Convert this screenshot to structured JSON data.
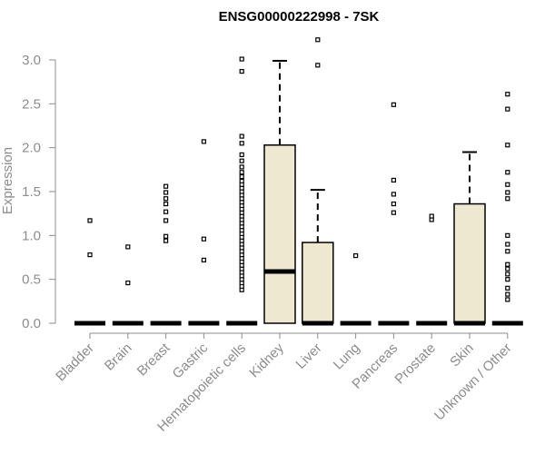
{
  "chart_data": {
    "type": "box",
    "title": "ENSG00000222998 - 7SK",
    "xlabel": "",
    "ylabel": "Expression",
    "ylim": [
      0,
      3.0
    ],
    "yticks": [
      "0.0",
      "0.5",
      "1.0",
      "1.5",
      "2.0",
      "2.5",
      "3.0"
    ],
    "categories": [
      "Bladder",
      "Brain",
      "Breast",
      "Gastric",
      "Hematopoietic cells",
      "Kidney",
      "Liver",
      "Lung",
      "Pancreas",
      "Prostate",
      "Skin",
      "Unknown / Other"
    ],
    "boxes": [
      {
        "q1": 0,
        "median": 0,
        "q3": 0,
        "whisker_low": 0,
        "whisker_high": 0,
        "outliers": [
          0.78,
          1.17
        ]
      },
      {
        "q1": 0,
        "median": 0,
        "q3": 0,
        "whisker_low": 0,
        "whisker_high": 0,
        "outliers": [
          0.46,
          0.87
        ]
      },
      {
        "q1": 0,
        "median": 0,
        "q3": 0,
        "whisker_low": 0,
        "whisker_high": 0,
        "outliers": [
          0.94,
          0.99,
          1.17,
          1.27,
          1.36,
          1.42,
          1.49,
          1.56
        ]
      },
      {
        "q1": 0,
        "median": 0,
        "q3": 0,
        "whisker_low": 0,
        "whisker_high": 0,
        "outliers": [
          0.72,
          0.96,
          2.07
        ]
      },
      {
        "q1": 0,
        "median": 0,
        "q3": 0,
        "whisker_low": 0,
        "whisker_high": 0,
        "outliers": [
          0.38,
          0.42,
          0.46,
          0.5,
          0.54,
          0.58,
          0.62,
          0.66,
          0.7,
          0.74,
          0.78,
          0.82,
          0.86,
          0.9,
          0.94,
          0.98,
          1.02,
          1.06,
          1.1,
          1.14,
          1.18,
          1.22,
          1.26,
          1.3,
          1.34,
          1.38,
          1.42,
          1.46,
          1.5,
          1.54,
          1.58,
          1.62,
          1.67,
          1.72,
          1.78,
          1.85,
          1.92,
          2.05,
          2.13,
          2.87,
          3.01
        ]
      },
      {
        "q1": 0,
        "median": 0.59,
        "q3": 2.03,
        "whisker_low": 0,
        "whisker_high": 2.99,
        "outliers": []
      },
      {
        "q1": 0,
        "median": 0,
        "q3": 0.92,
        "whisker_low": 0,
        "whisker_high": 1.52,
        "outliers": [
          2.94,
          3.23
        ]
      },
      {
        "q1": 0,
        "median": 0,
        "q3": 0,
        "whisker_low": 0,
        "whisker_high": 0,
        "outliers": [
          0.77
        ]
      },
      {
        "q1": 0,
        "median": 0,
        "q3": 0,
        "whisker_low": 0,
        "whisker_high": 0,
        "outliers": [
          1.26,
          1.36,
          1.47,
          1.63,
          2.49
        ]
      },
      {
        "q1": 0,
        "median": 0,
        "q3": 0,
        "whisker_low": 0,
        "whisker_high": 0,
        "outliers": [
          1.18,
          1.22
        ]
      },
      {
        "q1": 0,
        "median": 0,
        "q3": 1.36,
        "whisker_low": 0,
        "whisker_high": 1.95,
        "outliers": []
      },
      {
        "q1": 0,
        "median": 0,
        "q3": 0,
        "whisker_low": 0,
        "whisker_high": 0,
        "outliers": [
          0.27,
          0.33,
          0.4,
          0.5,
          0.56,
          0.62,
          0.67,
          0.82,
          0.9,
          1.0,
          1.42,
          1.49,
          1.58,
          1.72,
          2.03,
          2.44,
          2.61
        ]
      }
    ],
    "box_fill": "#ede8cf",
    "box_stroke": "#000000",
    "axis_color": "#8c8c8c",
    "grid": false,
    "legend": "none"
  }
}
